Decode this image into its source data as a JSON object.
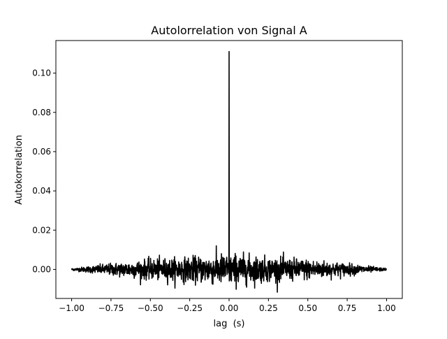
{
  "chart_data": {
    "type": "line",
    "title": "Autolorrelation von Signal A",
    "xlabel": "lag  (s)",
    "ylabel": "Autokorrelation",
    "xlim": [
      -1.1,
      1.1
    ],
    "ylim": [
      -0.0148,
      0.1166
    ],
    "x_ticks": [
      -1.0,
      -0.75,
      -0.5,
      -0.25,
      0.0,
      0.25,
      0.5,
      0.75,
      1.0
    ],
    "x_tick_labels": [
      "−1.00",
      "−0.75",
      "−0.50",
      "−0.25",
      "0.00",
      "0.25",
      "0.50",
      "0.75",
      "1.00"
    ],
    "y_ticks": [
      0.0,
      0.02,
      0.04,
      0.06,
      0.08,
      0.1
    ],
    "y_tick_labels": [
      "0.00",
      "0.02",
      "0.04",
      "0.06",
      "0.08",
      "0.10"
    ],
    "grid": false,
    "line_color": "#000000",
    "series": [
      {
        "x": [
          -1.0,
          0.0,
          1.0
        ],
        "values": [
          0.0,
          0.111,
          0.0
        ],
        "peak": {
          "x": 0.0,
          "y": 0.111
        },
        "noise_envelope": [
          {
            "x": -1.0,
            "amplitude": 0.0005
          },
          {
            "x": -0.75,
            "amplitude": 0.003
          },
          {
            "x": -0.5,
            "amplitude": 0.005
          },
          {
            "x": -0.25,
            "amplitude": 0.006
          },
          {
            "x": 0.0,
            "amplitude": 0.008
          },
          {
            "x": 0.25,
            "amplitude": 0.006
          },
          {
            "x": 0.5,
            "amplitude": 0.005
          },
          {
            "x": 0.75,
            "amplitude": 0.003
          },
          {
            "x": 1.0,
            "amplitude": 0.0005
          }
        ]
      }
    ]
  }
}
